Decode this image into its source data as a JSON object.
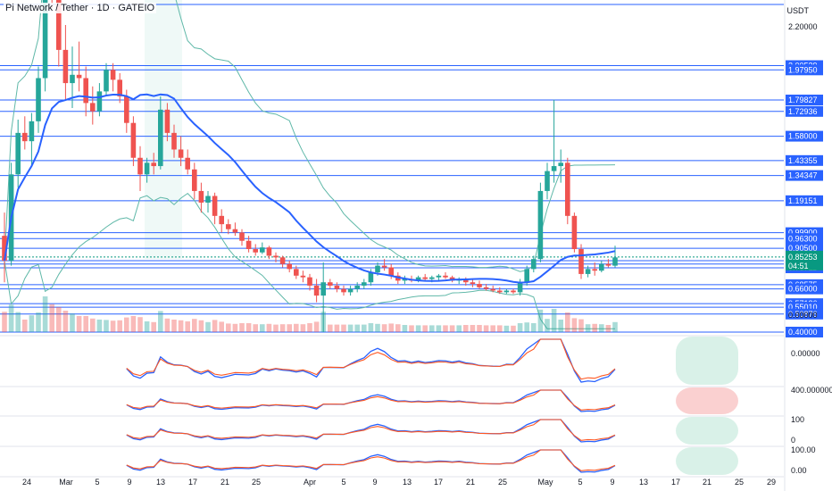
{
  "title": "Pi Network / Tether · 1D · GATEIO",
  "currency": "USDT",
  "colors": {
    "up": "#26a69a",
    "down": "#ef5350",
    "level_line": "#2962ff",
    "sma": "#2962ff",
    "band": "#5fb8a8",
    "badge": "#2962ff",
    "current_badge": "#089981"
  },
  "price_axis": {
    "labels": [
      "2.20000",
      "0.00000"
    ]
  },
  "levels": [
    "2.00529",
    "1.97950",
    "1.79827",
    "1.72936",
    "1.58000",
    "1.43355",
    "1.34347",
    "1.19151",
    "0.99900",
    "0.96300",
    "0.90500",
    "0.83000",
    "0.81000",
    "0.78711",
    "0.68575",
    "0.66000",
    "0.57126",
    "0.55010",
    "0.50876",
    "0.40000"
  ],
  "current_price": {
    "value": "0.85253",
    "countdown": "04:51"
  },
  "x_axis": [
    "24",
    "Mar",
    "5",
    "9",
    "13",
    "17",
    "21",
    "25",
    "Apr",
    "5",
    "9",
    "13",
    "17",
    "21",
    "25",
    "May",
    "5",
    "9",
    "13",
    "17",
    "21",
    "25",
    "29"
  ],
  "indicator_labels": {
    "pane1": [
      "0.00000"
    ],
    "pane2": [
      "400.000000"
    ],
    "pane3": [
      "100",
      "0"
    ],
    "pane4": [
      "100.00",
      "0.00"
    ]
  },
  "chart_data": {
    "type": "candlestick",
    "title": "Pi Network / Tether · 1D · GATEIO",
    "ylabel": "USDT",
    "candles": [
      {
        "o": 0.98,
        "h": 1.12,
        "l": 0.7,
        "c": 0.83
      },
      {
        "o": 0.83,
        "h": 1.42,
        "l": 0.8,
        "c": 1.35
      },
      {
        "o": 1.35,
        "h": 1.68,
        "l": 1.27,
        "c": 1.6
      },
      {
        "o": 1.6,
        "h": 1.7,
        "l": 1.5,
        "c": 1.55
      },
      {
        "o": 1.55,
        "h": 1.72,
        "l": 1.4,
        "c": 1.67
      },
      {
        "o": 1.67,
        "h": 2.0,
        "l": 1.6,
        "c": 1.93
      },
      {
        "o": 1.93,
        "h": 2.7,
        "l": 1.85,
        "c": 2.6
      },
      {
        "o": 2.6,
        "h": 2.98,
        "l": 2.35,
        "c": 2.45
      },
      {
        "o": 2.45,
        "h": 2.55,
        "l": 2.0,
        "c": 2.1
      },
      {
        "o": 2.1,
        "h": 2.25,
        "l": 1.8,
        "c": 1.9
      },
      {
        "o": 1.9,
        "h": 2.12,
        "l": 1.75,
        "c": 1.95
      },
      {
        "o": 1.95,
        "h": 2.15,
        "l": 1.85,
        "c": 1.93
      },
      {
        "o": 1.93,
        "h": 2.0,
        "l": 1.7,
        "c": 1.78
      },
      {
        "o": 1.78,
        "h": 1.88,
        "l": 1.65,
        "c": 1.73
      },
      {
        "o": 1.73,
        "h": 1.9,
        "l": 1.7,
        "c": 1.85
      },
      {
        "o": 1.85,
        "h": 2.02,
        "l": 1.83,
        "c": 1.98
      },
      {
        "o": 1.98,
        "h": 2.02,
        "l": 1.85,
        "c": 1.92
      },
      {
        "o": 1.92,
        "h": 1.96,
        "l": 1.78,
        "c": 1.82
      },
      {
        "o": 1.82,
        "h": 1.86,
        "l": 1.6,
        "c": 1.66
      },
      {
        "o": 1.66,
        "h": 1.7,
        "l": 1.4,
        "c": 1.45
      },
      {
        "o": 1.45,
        "h": 1.52,
        "l": 1.25,
        "c": 1.35
      },
      {
        "o": 1.35,
        "h": 1.45,
        "l": 1.3,
        "c": 1.42
      },
      {
        "o": 1.42,
        "h": 1.48,
        "l": 1.35,
        "c": 1.4
      },
      {
        "o": 1.4,
        "h": 1.82,
        "l": 1.38,
        "c": 1.74
      },
      {
        "o": 1.74,
        "h": 1.78,
        "l": 1.55,
        "c": 1.6
      },
      {
        "o": 1.6,
        "h": 1.65,
        "l": 1.45,
        "c": 1.5
      },
      {
        "o": 1.5,
        "h": 1.58,
        "l": 1.4,
        "c": 1.45
      },
      {
        "o": 1.45,
        "h": 1.5,
        "l": 1.35,
        "c": 1.38
      },
      {
        "o": 1.38,
        "h": 1.42,
        "l": 1.2,
        "c": 1.25
      },
      {
        "o": 1.25,
        "h": 1.3,
        "l": 1.12,
        "c": 1.18
      },
      {
        "o": 1.18,
        "h": 1.25,
        "l": 1.12,
        "c": 1.22
      },
      {
        "o": 1.22,
        "h": 1.24,
        "l": 1.05,
        "c": 1.1
      },
      {
        "o": 1.1,
        "h": 1.14,
        "l": 1.0,
        "c": 1.05
      },
      {
        "o": 1.05,
        "h": 1.08,
        "l": 0.99,
        "c": 1.02
      },
      {
        "o": 1.02,
        "h": 1.06,
        "l": 0.98,
        "c": 1.0
      },
      {
        "o": 1.0,
        "h": 1.02,
        "l": 0.92,
        "c": 0.95
      },
      {
        "o": 0.95,
        "h": 0.98,
        "l": 0.88,
        "c": 0.9
      },
      {
        "o": 0.9,
        "h": 0.93,
        "l": 0.86,
        "c": 0.88
      },
      {
        "o": 0.88,
        "h": 0.94,
        "l": 0.87,
        "c": 0.91
      },
      {
        "o": 0.91,
        "h": 0.92,
        "l": 0.84,
        "c": 0.86
      },
      {
        "o": 0.86,
        "h": 0.88,
        "l": 0.82,
        "c": 0.85
      },
      {
        "o": 0.85,
        "h": 0.86,
        "l": 0.79,
        "c": 0.81
      },
      {
        "o": 0.81,
        "h": 0.83,
        "l": 0.76,
        "c": 0.78
      },
      {
        "o": 0.78,
        "h": 0.8,
        "l": 0.72,
        "c": 0.74
      },
      {
        "o": 0.74,
        "h": 0.77,
        "l": 0.7,
        "c": 0.73
      },
      {
        "o": 0.73,
        "h": 0.75,
        "l": 0.65,
        "c": 0.68
      },
      {
        "o": 0.68,
        "h": 0.72,
        "l": 0.58,
        "c": 0.62
      },
      {
        "o": 0.62,
        "h": 0.82,
        "l": 0.4,
        "c": 0.7
      },
      {
        "o": 0.7,
        "h": 0.72,
        "l": 0.66,
        "c": 0.68
      },
      {
        "o": 0.68,
        "h": 0.7,
        "l": 0.64,
        "c": 0.66
      },
      {
        "o": 0.66,
        "h": 0.68,
        "l": 0.62,
        "c": 0.64
      },
      {
        "o": 0.64,
        "h": 0.68,
        "l": 0.62,
        "c": 0.66
      },
      {
        "o": 0.66,
        "h": 0.7,
        "l": 0.64,
        "c": 0.68
      },
      {
        "o": 0.68,
        "h": 0.72,
        "l": 0.66,
        "c": 0.7
      },
      {
        "o": 0.7,
        "h": 0.78,
        "l": 0.68,
        "c": 0.76
      },
      {
        "o": 0.76,
        "h": 0.82,
        "l": 0.74,
        "c": 0.8
      },
      {
        "o": 0.8,
        "h": 0.84,
        "l": 0.77,
        "c": 0.79
      },
      {
        "o": 0.79,
        "h": 0.81,
        "l": 0.72,
        "c": 0.74
      },
      {
        "o": 0.74,
        "h": 0.76,
        "l": 0.69,
        "c": 0.71
      },
      {
        "o": 0.71,
        "h": 0.74,
        "l": 0.69,
        "c": 0.72
      },
      {
        "o": 0.72,
        "h": 0.74,
        "l": 0.7,
        "c": 0.71
      },
      {
        "o": 0.71,
        "h": 0.74,
        "l": 0.7,
        "c": 0.73
      },
      {
        "o": 0.73,
        "h": 0.75,
        "l": 0.71,
        "c": 0.72
      },
      {
        "o": 0.72,
        "h": 0.74,
        "l": 0.7,
        "c": 0.73
      },
      {
        "o": 0.73,
        "h": 0.75,
        "l": 0.71,
        "c": 0.74
      },
      {
        "o": 0.74,
        "h": 0.76,
        "l": 0.72,
        "c": 0.73
      },
      {
        "o": 0.73,
        "h": 0.74,
        "l": 0.7,
        "c": 0.71
      },
      {
        "o": 0.71,
        "h": 0.73,
        "l": 0.69,
        "c": 0.72
      },
      {
        "o": 0.72,
        "h": 0.73,
        "l": 0.68,
        "c": 0.7
      },
      {
        "o": 0.7,
        "h": 0.72,
        "l": 0.67,
        "c": 0.69
      },
      {
        "o": 0.69,
        "h": 0.71,
        "l": 0.66,
        "c": 0.67
      },
      {
        "o": 0.67,
        "h": 0.69,
        "l": 0.65,
        "c": 0.66
      },
      {
        "o": 0.66,
        "h": 0.68,
        "l": 0.64,
        "c": 0.65
      },
      {
        "o": 0.65,
        "h": 0.67,
        "l": 0.63,
        "c": 0.64
      },
      {
        "o": 0.64,
        "h": 0.66,
        "l": 0.63,
        "c": 0.65
      },
      {
        "o": 0.65,
        "h": 0.66,
        "l": 0.63,
        "c": 0.64
      },
      {
        "o": 0.64,
        "h": 0.72,
        "l": 0.62,
        "c": 0.7
      },
      {
        "o": 0.7,
        "h": 0.8,
        "l": 0.68,
        "c": 0.78
      },
      {
        "o": 0.78,
        "h": 0.86,
        "l": 0.76,
        "c": 0.84
      },
      {
        "o": 0.84,
        "h": 1.3,
        "l": 0.82,
        "c": 1.25
      },
      {
        "o": 1.25,
        "h": 1.42,
        "l": 1.2,
        "c": 1.37
      },
      {
        "o": 1.37,
        "h": 1.8,
        "l": 1.3,
        "c": 1.4
      },
      {
        "o": 1.4,
        "h": 1.5,
        "l": 1.3,
        "c": 1.42
      },
      {
        "o": 1.42,
        "h": 1.45,
        "l": 1.05,
        "c": 1.1
      },
      {
        "o": 1.1,
        "h": 1.12,
        "l": 0.88,
        "c": 0.9
      },
      {
        "o": 0.9,
        "h": 0.93,
        "l": 0.72,
        "c": 0.75
      },
      {
        "o": 0.75,
        "h": 0.8,
        "l": 0.73,
        "c": 0.78
      },
      {
        "o": 0.78,
        "h": 0.82,
        "l": 0.74,
        "c": 0.77
      },
      {
        "o": 0.77,
        "h": 0.83,
        "l": 0.76,
        "c": 0.81
      },
      {
        "o": 0.81,
        "h": 0.84,
        "l": 0.79,
        "c": 0.8
      },
      {
        "o": 0.8,
        "h": 0.92,
        "l": 0.79,
        "c": 0.85
      }
    ]
  }
}
